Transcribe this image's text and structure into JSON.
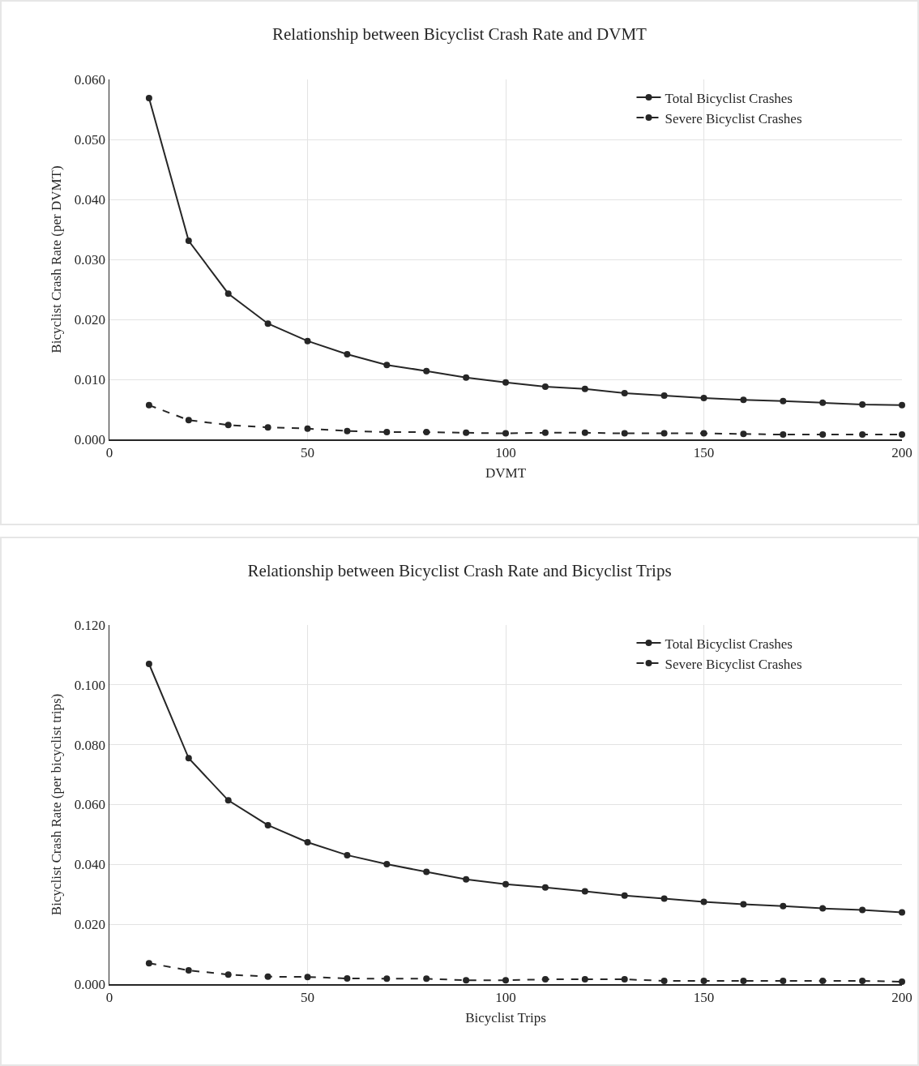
{
  "chart_data": [
    {
      "type": "line",
      "title": "Relationship between Bicyclist Crash Rate and DVMT",
      "xlabel": "DVMT",
      "ylabel": "Bicyclist Crash Rate (per DVMT)",
      "x": [
        10,
        20,
        30,
        40,
        50,
        60,
        70,
        80,
        90,
        100,
        110,
        120,
        130,
        140,
        150,
        160,
        170,
        180,
        190,
        200
      ],
      "series": [
        {
          "name": "Total Bicyclist Crashes",
          "color": "#262626",
          "line_style": "solid",
          "values": [
            0.0569,
            0.0331,
            0.0243,
            0.0193,
            0.0164,
            0.0142,
            0.0124,
            0.0114,
            0.0103,
            0.0095,
            0.0088,
            0.0084,
            0.0077,
            0.0073,
            0.0069,
            0.0066,
            0.0064,
            0.0061,
            0.0058,
            0.0057
          ]
        },
        {
          "name": "Severe Bicyclist Crashes",
          "color": "#262626",
          "line_style": "dashed",
          "values": [
            0.0057,
            0.0032,
            0.0024,
            0.002,
            0.0018,
            0.0014,
            0.0012,
            0.0012,
            0.0011,
            0.001,
            0.0011,
            0.0011,
            0.001,
            0.001,
            0.001,
            0.0009,
            0.0008,
            0.0008,
            0.0008,
            0.0008
          ]
        }
      ],
      "xlim": [
        0,
        200
      ],
      "xticks": [
        0,
        50,
        100,
        150,
        200
      ],
      "ylim": [
        0,
        0.06
      ],
      "yticks": [
        {
          "value": 0,
          "label": "0.000"
        },
        {
          "value": 0.01,
          "label": "0.010"
        },
        {
          "value": 0.02,
          "label": "0.020"
        },
        {
          "value": 0.03,
          "label": "0.030"
        },
        {
          "value": 0.04,
          "label": "0.040"
        },
        {
          "value": 0.05,
          "label": "0.050"
        },
        {
          "value": 0.06,
          "label": "0.060"
        }
      ],
      "grid": true,
      "legend": "top right",
      "marker": "circle"
    },
    {
      "type": "line",
      "title": "Relationship between Bicyclist Crash Rate and Bicyclist Trips",
      "xlabel": "Bicyclist Trips",
      "ylabel": "Bicyclist Crash Rate (per bicyclist trips)",
      "x": [
        10,
        20,
        30,
        40,
        50,
        60,
        70,
        80,
        90,
        100,
        110,
        120,
        130,
        140,
        150,
        160,
        170,
        180,
        190,
        200
      ],
      "series": [
        {
          "name": "Total Bicyclist Crashes",
          "color": "#262626",
          "line_style": "solid",
          "values": [
            0.107,
            0.0755,
            0.0614,
            0.0531,
            0.0474,
            0.0431,
            0.0401,
            0.0375,
            0.035,
            0.0334,
            0.0323,
            0.031,
            0.0296,
            0.0286,
            0.0275,
            0.0267,
            0.0261,
            0.0253,
            0.0248,
            0.024
          ]
        },
        {
          "name": "Severe Bicyclist Crashes",
          "color": "#262626",
          "line_style": "dashed",
          "values": [
            0.007,
            0.0046,
            0.0032,
            0.0025,
            0.0024,
            0.0019,
            0.0018,
            0.0018,
            0.0013,
            0.0013,
            0.0016,
            0.0016,
            0.0016,
            0.0011,
            0.0011,
            0.0011,
            0.0011,
            0.0011,
            0.0011,
            0.0008
          ]
        }
      ],
      "xlim": [
        0,
        200
      ],
      "xticks": [
        0,
        50,
        100,
        150,
        200
      ],
      "ylim": [
        0,
        0.12
      ],
      "yticks": [
        {
          "value": 0,
          "label": "0.000"
        },
        {
          "value": 0.02,
          "label": "0.020"
        },
        {
          "value": 0.04,
          "label": "0.040"
        },
        {
          "value": 0.06,
          "label": "0.060"
        },
        {
          "value": 0.08,
          "label": "0.080"
        },
        {
          "value": 0.1,
          "label": "0.100"
        },
        {
          "value": 0.12,
          "label": "0.120"
        }
      ],
      "grid": true,
      "legend": "top right",
      "marker": "circle"
    }
  ]
}
